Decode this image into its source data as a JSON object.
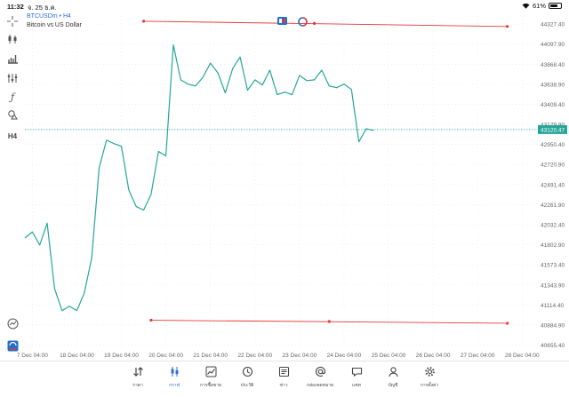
{
  "status": {
    "time": "11:32",
    "date": "จ. 25 ธ.ค.",
    "battery": "61%",
    "battery_level": 0.61
  },
  "symbol": {
    "title": "BTCUSDm • H4",
    "description": "Bitcoin vs US Dollar"
  },
  "toolbar": {
    "timeframe_label": "H4"
  },
  "price": {
    "current": "43120.47",
    "current_value": 43120.47,
    "line_color": "#26a69a"
  },
  "chart_data": {
    "type": "line",
    "color": "#26a69a",
    "yaxis_ticks": [
      "44327.40",
      "44097.90",
      "43868.40",
      "43638.90",
      "43409.40",
      "43179.90",
      "42950.40",
      "42720.90",
      "42491.40",
      "42261.90",
      "42032.40",
      "41802.90",
      "41573.40",
      "41343.90",
      "41114.40",
      "40884.90",
      "40655.40"
    ],
    "ylim": [
      40600,
      44420
    ],
    "x_index_range": [
      0,
      69
    ],
    "xaxis_ticks": [
      {
        "label": "7 Dec 04:00",
        "index": 1
      },
      {
        "label": "18 Dec 04:00",
        "index": 7
      },
      {
        "label": "19 Dec 04:00",
        "index": 13
      },
      {
        "label": "20 Dec 04:00",
        "index": 19
      },
      {
        "label": "21 Dec 04:00",
        "index": 25
      },
      {
        "label": "22 Dec 04:00",
        "index": 31
      },
      {
        "label": "23 Dec 04:00",
        "index": 37
      },
      {
        "label": "24 Dec 04:00",
        "index": 43
      },
      {
        "label": "25 Dec 04:00",
        "index": 49
      },
      {
        "label": "26 Dec 04:00",
        "index": 55
      },
      {
        "label": "27 Dec 04:00",
        "index": 61
      },
      {
        "label": "28 Dec 04:00",
        "index": 67
      }
    ],
    "values": [
      41880,
      41950,
      41800,
      42050,
      41300,
      41050,
      41100,
      41050,
      41250,
      41650,
      42680,
      43000,
      42960,
      42930,
      42430,
      42240,
      42200,
      42380,
      42870,
      42820,
      44090,
      43690,
      43640,
      43620,
      43720,
      43880,
      43770,
      43540,
      43820,
      43950,
      43570,
      43690,
      43630,
      43800,
      43520,
      43550,
      43520,
      43740,
      43680,
      43690,
      43800,
      43620,
      43600,
      43640,
      43580,
      42980,
      43130,
      43110
    ],
    "trendlines": [
      {
        "color": "#e53935",
        "points": [
          {
            "index": 16,
            "value": 44360
          },
          {
            "index": 39,
            "value": 44335
          },
          {
            "index": 65,
            "value": 44300
          }
        ]
      },
      {
        "color": "#e53935",
        "points": [
          {
            "index": 17,
            "value": 40940
          },
          {
            "index": 41,
            "value": 40925
          },
          {
            "index": 65,
            "value": 40905
          }
        ]
      }
    ]
  },
  "nav": [
    {
      "label": "ราคา",
      "icon": "sort-arrows-icon",
      "active": false
    },
    {
      "label": "กราฟ",
      "icon": "candlestick-icon",
      "active": true
    },
    {
      "label": "การซื้อขาย",
      "icon": "trade-chart-icon",
      "active": false
    },
    {
      "label": "ประวัติ",
      "icon": "history-icon",
      "active": false
    },
    {
      "label": "ข่าว",
      "icon": "news-icon",
      "active": false
    },
    {
      "label": "กล่องจดหมาย",
      "icon": "at-icon",
      "active": false
    },
    {
      "label": "แชท",
      "icon": "chat-icon",
      "active": false
    },
    {
      "label": "บัญชี",
      "icon": "account-icon",
      "active": false
    },
    {
      "label": "การตั้งค่า",
      "icon": "gear-icon",
      "active": false
    }
  ]
}
